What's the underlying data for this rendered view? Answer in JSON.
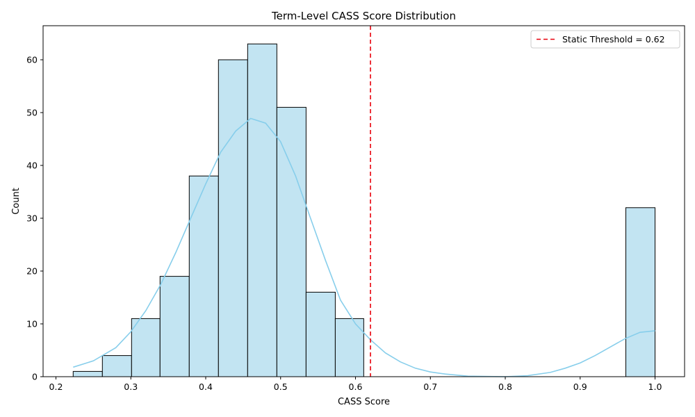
{
  "chart_data": {
    "type": "bar",
    "title": "Term-Level CASS Score Distribution",
    "xlabel": "CASS Score",
    "ylabel": "Count",
    "xlim": [
      0.2,
      1.0
    ],
    "ylim": [
      0,
      65
    ],
    "x_ticks": [
      0.2,
      0.3,
      0.4,
      0.5,
      0.6,
      0.7,
      0.8,
      0.9,
      1.0
    ],
    "x_tick_labels": [
      "0.2",
      "0.3",
      "0.4",
      "0.5",
      "0.6",
      "0.7",
      "0.8",
      "0.9",
      "1.0"
    ],
    "y_ticks": [
      0,
      10,
      20,
      30,
      40,
      50,
      60
    ],
    "y_tick_labels": [
      "0",
      "10",
      "20",
      "30",
      "40",
      "50",
      "60"
    ],
    "bins": [
      {
        "x0": 0.223,
        "x1": 0.262,
        "count": 1
      },
      {
        "x0": 0.262,
        "x1": 0.301,
        "count": 4
      },
      {
        "x0": 0.301,
        "x1": 0.339,
        "count": 11
      },
      {
        "x0": 0.339,
        "x1": 0.378,
        "count": 19
      },
      {
        "x0": 0.378,
        "x1": 0.417,
        "count": 38
      },
      {
        "x0": 0.417,
        "x1": 0.456,
        "count": 60
      },
      {
        "x0": 0.456,
        "x1": 0.495,
        "count": 63
      },
      {
        "x0": 0.495,
        "x1": 0.534,
        "count": 51
      },
      {
        "x0": 0.534,
        "x1": 0.573,
        "count": 16
      },
      {
        "x0": 0.573,
        "x1": 0.611,
        "count": 11
      },
      {
        "x0": 0.961,
        "x1": 1.0,
        "count": 32
      }
    ],
    "kde": [
      [
        0.223,
        1.8
      ],
      [
        0.25,
        3.0
      ],
      [
        0.28,
        5.5
      ],
      [
        0.3,
        8.5
      ],
      [
        0.32,
        12.5
      ],
      [
        0.34,
        17.5
      ],
      [
        0.36,
        23.5
      ],
      [
        0.38,
        30.0
      ],
      [
        0.4,
        36.5
      ],
      [
        0.42,
        42.5
      ],
      [
        0.44,
        46.5
      ],
      [
        0.46,
        48.9
      ],
      [
        0.48,
        48.0
      ],
      [
        0.5,
        44.5
      ],
      [
        0.52,
        38.0
      ],
      [
        0.54,
        30.0
      ],
      [
        0.56,
        22.0
      ],
      [
        0.58,
        14.5
      ],
      [
        0.6,
        10.0
      ],
      [
        0.62,
        7.0
      ],
      [
        0.64,
        4.5
      ],
      [
        0.66,
        2.8
      ],
      [
        0.68,
        1.6
      ],
      [
        0.7,
        0.9
      ],
      [
        0.72,
        0.5
      ],
      [
        0.75,
        0.1
      ],
      [
        0.8,
        0.0
      ],
      [
        0.83,
        0.2
      ],
      [
        0.86,
        0.8
      ],
      [
        0.88,
        1.6
      ],
      [
        0.9,
        2.6
      ],
      [
        0.92,
        4.0
      ],
      [
        0.94,
        5.6
      ],
      [
        0.96,
        7.2
      ],
      [
        0.98,
        8.4
      ],
      [
        1.0,
        8.7
      ]
    ],
    "threshold": 0.62,
    "legend": {
      "label": "Static Threshold = 0.62",
      "position": "upper right"
    },
    "colors": {
      "bar_fill": "#c2e4f2",
      "bar_edge": "#000000",
      "kde_line": "#87ceeb",
      "threshold_line": "#e8000b"
    },
    "grid": false
  }
}
